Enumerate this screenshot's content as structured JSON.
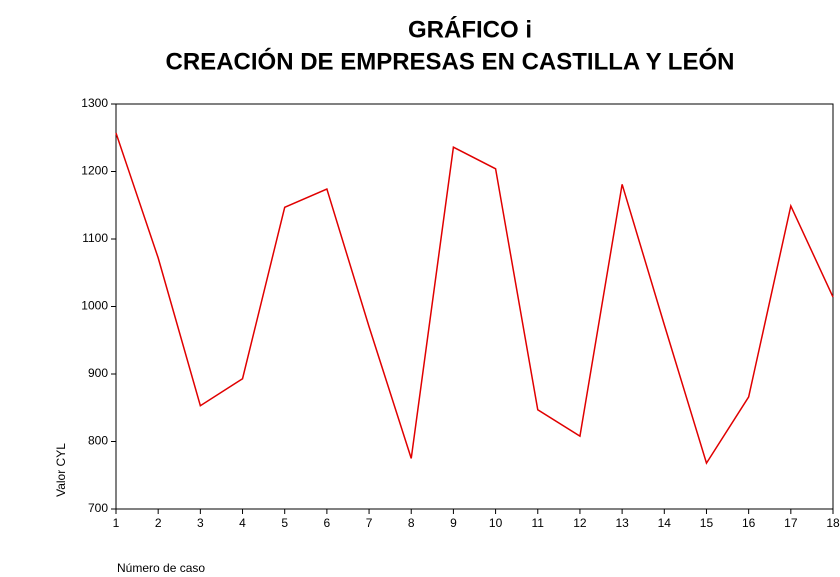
{
  "chart_data": {
    "type": "line",
    "title": "GRÁFICO i",
    "subtitle": "CREACIÓN DE EMPRESAS EN CASTILLA Y LEÓN",
    "x_label": "Número de caso",
    "y_label": "Valor CYL",
    "x": [
      1,
      2,
      3,
      4,
      5,
      6,
      7,
      8,
      9,
      10,
      11,
      12,
      13,
      14,
      15,
      16,
      17,
      18
    ],
    "series": [
      {
        "name": "Valor CYL",
        "color": "#e00000",
        "values": [
          1257,
          1072,
          853,
          893,
          1147,
          1174,
          970,
          775,
          1236,
          1204,
          847,
          808,
          1181,
          973,
          768,
          866,
          1149,
          1014
        ]
      }
    ],
    "xlim": [
      1,
      18
    ],
    "xticks": [
      1,
      2,
      3,
      4,
      5,
      6,
      7,
      8,
      9,
      10,
      11,
      12,
      13,
      14,
      15,
      16,
      17,
      18
    ],
    "ylim": [
      700,
      1300
    ],
    "yticks": [
      700,
      800,
      900,
      1000,
      1100,
      1200,
      1300
    ],
    "grid": false
  }
}
